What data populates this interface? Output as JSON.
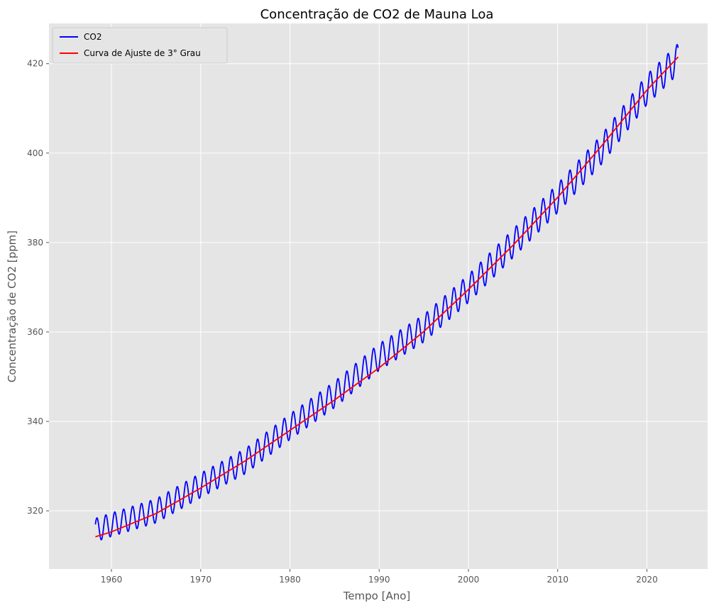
{
  "chart_data": {
    "type": "line",
    "title": "Concentração de CO2 de Mauna Loa",
    "xlabel": "Tempo [Ano]",
    "ylabel": "Concentração de CO2 [ppm]",
    "xlim": [
      1953,
      2026.8
    ],
    "ylim": [
      307,
      429
    ],
    "x_ticks": [
      1960,
      1970,
      1980,
      1990,
      2000,
      2010,
      2020
    ],
    "y_ticks": [
      320,
      340,
      360,
      380,
      400,
      420
    ],
    "grid": true,
    "legend": "top-left",
    "background": "#e5e5e5",
    "series": [
      {
        "name": "CO2",
        "color": "#0000ff",
        "x_range": [
          1958.2,
          2023.5
        ],
        "seasonal_amplitude": [
          2.6,
          3.4
        ],
        "x": [
          1958.2,
          1960,
          1965,
          1970,
          1975,
          1980,
          1985,
          1990,
          1995,
          2000,
          2005,
          2010,
          2015,
          2020,
          2023.5
        ],
        "y": [
          315.7,
          316.9,
          320.0,
          325.7,
          331.1,
          338.8,
          346.0,
          354.4,
          360.8,
          369.7,
          379.8,
          389.9,
          401.0,
          414.2,
          421.1
        ]
      },
      {
        "name": "Curva de Ajuste de 3° Grau",
        "color": "#ff0000",
        "x": [
          1958.2,
          1960,
          1965,
          1970,
          1975,
          1980,
          1985,
          1990,
          1995,
          2000,
          2005,
          2010,
          2015,
          2020,
          2023.5
        ],
        "y": [
          314.2,
          315.3,
          319.4,
          325.1,
          331.2,
          338.0,
          344.8,
          352.0,
          360.1,
          369.5,
          379.4,
          390.1,
          401.8,
          414.1,
          421.5
        ]
      }
    ]
  }
}
